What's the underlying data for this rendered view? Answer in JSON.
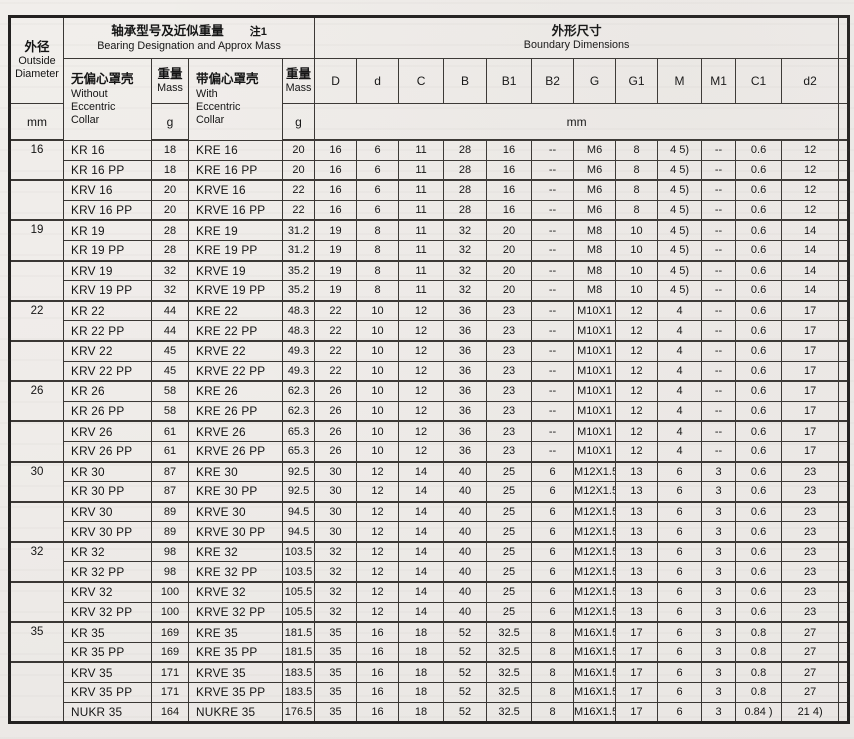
{
  "header": {
    "outside_diameter": {
      "zh": "外径",
      "en": "Outside\nDiameter",
      "unit": "mm"
    },
    "designation": {
      "zh": "轴承型号及近似重量",
      "note": "注1",
      "en": "Bearing Designation and Approx Mass"
    },
    "boundary": {
      "zh": "外形尺寸",
      "en": "Boundary Dimensions",
      "unit": "mm"
    },
    "without": {
      "zh": "无偏心罩壳",
      "en": "Without\nEccentric\nCollar"
    },
    "with": {
      "zh": "带偏心罩壳",
      "en": "With\nEccentric\nCollar"
    },
    "mass": {
      "zh": "重量",
      "en": "Mass",
      "unit": "g"
    },
    "dim_columns": [
      "D",
      "d",
      "C",
      "B",
      "B1",
      "B2",
      "G",
      "G1",
      "M",
      "M1",
      "C1",
      "d2"
    ]
  },
  "rows": [
    {
      "od": {
        "label": "16",
        "span": 2
      },
      "name1": "KR 16",
      "mass1": "18",
      "name2": "KRE 16",
      "mass2": "20",
      "dims": [
        "16",
        "6",
        "11",
        "28",
        "16",
        "--",
        "M6",
        "8",
        "4 5)",
        "--",
        "0.6",
        "12"
      ],
      "thick": false
    },
    {
      "od": null,
      "name1": "KR 16 PP",
      "mass1": "18",
      "name2": "KRE 16 PP",
      "mass2": "20",
      "dims": [
        "16",
        "6",
        "11",
        "28",
        "16",
        "--",
        "M6",
        "8",
        "4 5)",
        "--",
        "0.6",
        "12"
      ],
      "thick": true
    },
    {
      "od": {
        "label": "",
        "span": 2
      },
      "name1": "KRV 16",
      "mass1": "20",
      "name2": "KRVE 16",
      "mass2": "22",
      "dims": [
        "16",
        "6",
        "11",
        "28",
        "16",
        "--",
        "M6",
        "8",
        "4 5)",
        "--",
        "0.6",
        "12"
      ],
      "thick": false
    },
    {
      "od": null,
      "name1": "KRV 16 PP",
      "mass1": "20",
      "name2": "KRVE 16 PP",
      "mass2": "22",
      "dims": [
        "16",
        "6",
        "11",
        "28",
        "16",
        "--",
        "M6",
        "8",
        "4 5)",
        "--",
        "0.6",
        "12"
      ],
      "thick": true
    },
    {
      "od": {
        "label": "19",
        "span": 2
      },
      "name1": "KR 19",
      "mass1": "28",
      "name2": "KRE 19",
      "mass2": "31.2",
      "dims": [
        "19",
        "8",
        "11",
        "32",
        "20",
        "--",
        "M8",
        "10",
        "4 5)",
        "--",
        "0.6",
        "14"
      ],
      "thick": false
    },
    {
      "od": null,
      "name1": "KR 19 PP",
      "mass1": "28",
      "name2": "KRE 19 PP",
      "mass2": "31.2",
      "dims": [
        "19",
        "8",
        "11",
        "32",
        "20",
        "--",
        "M8",
        "10",
        "4 5)",
        "--",
        "0.6",
        "14"
      ],
      "thick": true
    },
    {
      "od": {
        "label": "",
        "span": 2
      },
      "name1": "KRV 19",
      "mass1": "32",
      "name2": "KRVE 19",
      "mass2": "35.2",
      "dims": [
        "19",
        "8",
        "11",
        "32",
        "20",
        "--",
        "M8",
        "10",
        "4 5)",
        "--",
        "0.6",
        "14"
      ],
      "thick": false
    },
    {
      "od": null,
      "name1": "KRV 19 PP",
      "mass1": "32",
      "name2": "KRVE 19 PP",
      "mass2": "35.2",
      "dims": [
        "19",
        "8",
        "11",
        "32",
        "20",
        "--",
        "M8",
        "10",
        "4 5)",
        "--",
        "0.6",
        "14"
      ],
      "thick": true
    },
    {
      "od": {
        "label": "22",
        "span": 2
      },
      "name1": "KR 22",
      "mass1": "44",
      "name2": "KRE 22",
      "mass2": "48.3",
      "dims": [
        "22",
        "10",
        "12",
        "36",
        "23",
        "--",
        "M10X1",
        "12",
        "4",
        "--",
        "0.6",
        "17"
      ],
      "thick": false
    },
    {
      "od": null,
      "name1": "KR 22 PP",
      "mass1": "44",
      "name2": "KRE 22 PP",
      "mass2": "48.3",
      "dims": [
        "22",
        "10",
        "12",
        "36",
        "23",
        "--",
        "M10X1",
        "12",
        "4",
        "--",
        "0.6",
        "17"
      ],
      "thick": true
    },
    {
      "od": {
        "label": "",
        "span": 2
      },
      "name1": "KRV 22",
      "mass1": "45",
      "name2": "KRVE 22",
      "mass2": "49.3",
      "dims": [
        "22",
        "10",
        "12",
        "36",
        "23",
        "--",
        "M10X1",
        "12",
        "4",
        "--",
        "0.6",
        "17"
      ],
      "thick": false
    },
    {
      "od": null,
      "name1": "KRV 22 PP",
      "mass1": "45",
      "name2": "KRVE 22 PP",
      "mass2": "49.3",
      "dims": [
        "22",
        "10",
        "12",
        "36",
        "23",
        "--",
        "M10X1",
        "12",
        "4",
        "--",
        "0.6",
        "17"
      ],
      "thick": true
    },
    {
      "od": {
        "label": "26",
        "span": 2
      },
      "name1": "KR 26",
      "mass1": "58",
      "name2": "KRE 26",
      "mass2": "62.3",
      "dims": [
        "26",
        "10",
        "12",
        "36",
        "23",
        "--",
        "M10X1",
        "12",
        "4",
        "--",
        "0.6",
        "17"
      ],
      "thick": false
    },
    {
      "od": null,
      "name1": "KR 26 PP",
      "mass1": "58",
      "name2": "KRE 26 PP",
      "mass2": "62.3",
      "dims": [
        "26",
        "10",
        "12",
        "36",
        "23",
        "--",
        "M10X1",
        "12",
        "4",
        "--",
        "0.6",
        "17"
      ],
      "thick": true
    },
    {
      "od": {
        "label": "",
        "span": 2
      },
      "name1": "KRV 26",
      "mass1": "61",
      "name2": "KRVE 26",
      "mass2": "65.3",
      "dims": [
        "26",
        "10",
        "12",
        "36",
        "23",
        "--",
        "M10X1",
        "12",
        "4",
        "--",
        "0.6",
        "17"
      ],
      "thick": false
    },
    {
      "od": null,
      "name1": "KRV 26 PP",
      "mass1": "61",
      "name2": "KRVE 26 PP",
      "mass2": "65.3",
      "dims": [
        "26",
        "10",
        "12",
        "36",
        "23",
        "--",
        "M10X1",
        "12",
        "4",
        "--",
        "0.6",
        "17"
      ],
      "thick": true
    },
    {
      "od": {
        "label": "30",
        "span": 2
      },
      "name1": "KR 30",
      "mass1": "87",
      "name2": "KRE 30",
      "mass2": "92.5",
      "dims": [
        "30",
        "12",
        "14",
        "40",
        "25",
        "6",
        "M12X1.5",
        "13",
        "6",
        "3",
        "0.6",
        "23"
      ],
      "thick": false
    },
    {
      "od": null,
      "name1": "KR 30 PP",
      "mass1": "87",
      "name2": "KRE 30 PP",
      "mass2": "92.5",
      "dims": [
        "30",
        "12",
        "14",
        "40",
        "25",
        "6",
        "M12X1.5",
        "13",
        "6",
        "3",
        "0.6",
        "23"
      ],
      "thick": true
    },
    {
      "od": {
        "label": "",
        "span": 2
      },
      "name1": "KRV 30",
      "mass1": "89",
      "name2": "KRVE 30",
      "mass2": "94.5",
      "dims": [
        "30",
        "12",
        "14",
        "40",
        "25",
        "6",
        "M12X1.5",
        "13",
        "6",
        "3",
        "0.6",
        "23"
      ],
      "thick": false
    },
    {
      "od": null,
      "name1": "KRV 30 PP",
      "mass1": "89",
      "name2": "KRVE 30 PP",
      "mass2": "94.5",
      "dims": [
        "30",
        "12",
        "14",
        "40",
        "25",
        "6",
        "M12X1.5",
        "13",
        "6",
        "3",
        "0.6",
        "23"
      ],
      "thick": true
    },
    {
      "od": {
        "label": "32",
        "span": 2
      },
      "name1": "KR 32",
      "mass1": "98",
      "name2": "KRE 32",
      "mass2": "103.5",
      "dims": [
        "32",
        "12",
        "14",
        "40",
        "25",
        "6",
        "M12X1.5",
        "13",
        "6",
        "3",
        "0.6",
        "23"
      ],
      "thick": false
    },
    {
      "od": null,
      "name1": "KR 32 PP",
      "mass1": "98",
      "name2": "KRE 32 PP",
      "mass2": "103.5",
      "dims": [
        "32",
        "12",
        "14",
        "40",
        "25",
        "6",
        "M12X1.5",
        "13",
        "6",
        "3",
        "0.6",
        "23"
      ],
      "thick": true
    },
    {
      "od": {
        "label": "",
        "span": 2
      },
      "name1": "KRV 32",
      "mass1": "100",
      "name2": "KRVE 32",
      "mass2": "105.5",
      "dims": [
        "32",
        "12",
        "14",
        "40",
        "25",
        "6",
        "M12X1.5",
        "13",
        "6",
        "3",
        "0.6",
        "23"
      ],
      "thick": false
    },
    {
      "od": null,
      "name1": "KRV 32 PP",
      "mass1": "100",
      "name2": "KRVE 32 PP",
      "mass2": "105.5",
      "dims": [
        "32",
        "12",
        "14",
        "40",
        "25",
        "6",
        "M12X1.5",
        "13",
        "6",
        "3",
        "0.6",
        "23"
      ],
      "thick": true
    },
    {
      "od": {
        "label": "35",
        "span": 2
      },
      "name1": "KR 35",
      "mass1": "169",
      "name2": "KRE 35",
      "mass2": "181.5",
      "dims": [
        "35",
        "16",
        "18",
        "52",
        "32.5",
        "8",
        "M16X1.5",
        "17",
        "6",
        "3",
        "0.8",
        "27"
      ],
      "thick": false
    },
    {
      "od": null,
      "name1": "KR 35 PP",
      "mass1": "169",
      "name2": "KRE 35 PP",
      "mass2": "181.5",
      "dims": [
        "35",
        "16",
        "18",
        "52",
        "32.5",
        "8",
        "M16X1.5",
        "17",
        "6",
        "3",
        "0.8",
        "27"
      ],
      "thick": true
    },
    {
      "od": {
        "label": "",
        "span": 3
      },
      "name1": "KRV 35",
      "mass1": "171",
      "name2": "KRVE 35",
      "mass2": "183.5",
      "dims": [
        "35",
        "16",
        "18",
        "52",
        "32.5",
        "8",
        "M16X1.5",
        "17",
        "6",
        "3",
        "0.8",
        "27"
      ],
      "thick": false
    },
    {
      "od": null,
      "name1": "KRV 35 PP",
      "mass1": "171",
      "name2": "KRVE 35 PP",
      "mass2": "183.5",
      "dims": [
        "35",
        "16",
        "18",
        "52",
        "32.5",
        "8",
        "M16X1.5",
        "17",
        "6",
        "3",
        "0.8",
        "27"
      ],
      "thick": false
    },
    {
      "od": null,
      "name1": "NUKR 35",
      "mass1": "164",
      "name2": "NUKRE 35",
      "mass2": "176.5",
      "dims": [
        "35",
        "16",
        "18",
        "52",
        "32.5",
        "8",
        "M16X1.5",
        "17",
        "6",
        "3",
        "0.84 )",
        "21 4)"
      ],
      "thick": false
    }
  ]
}
